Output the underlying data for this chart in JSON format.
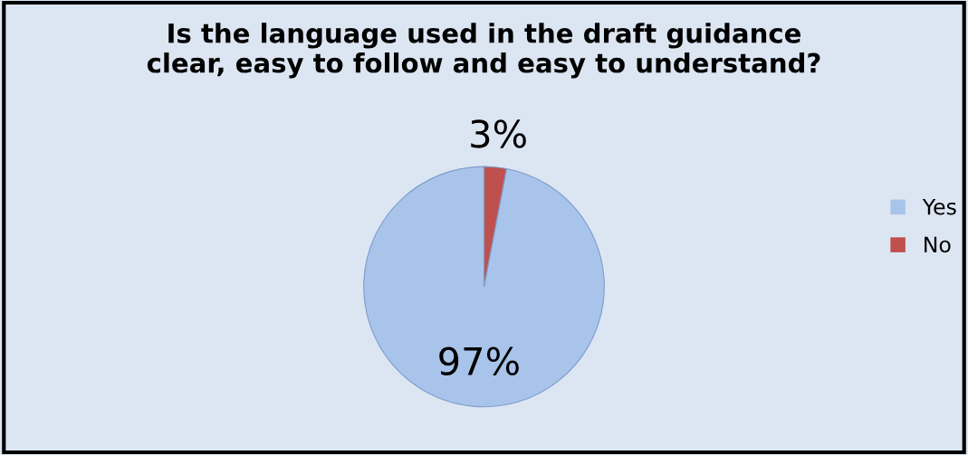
{
  "chart_data": {
    "type": "pie",
    "title": "Is the language used in the draft guidance\nclear, easy to follow and easy to understand?",
    "categories": [
      "Yes",
      "No"
    ],
    "values": [
      97,
      3
    ],
    "colors": [
      "#a9c4eb",
      "#c0504d"
    ],
    "data_labels": true,
    "value_labels": [
      "97%",
      "3%"
    ],
    "legend": "right"
  }
}
